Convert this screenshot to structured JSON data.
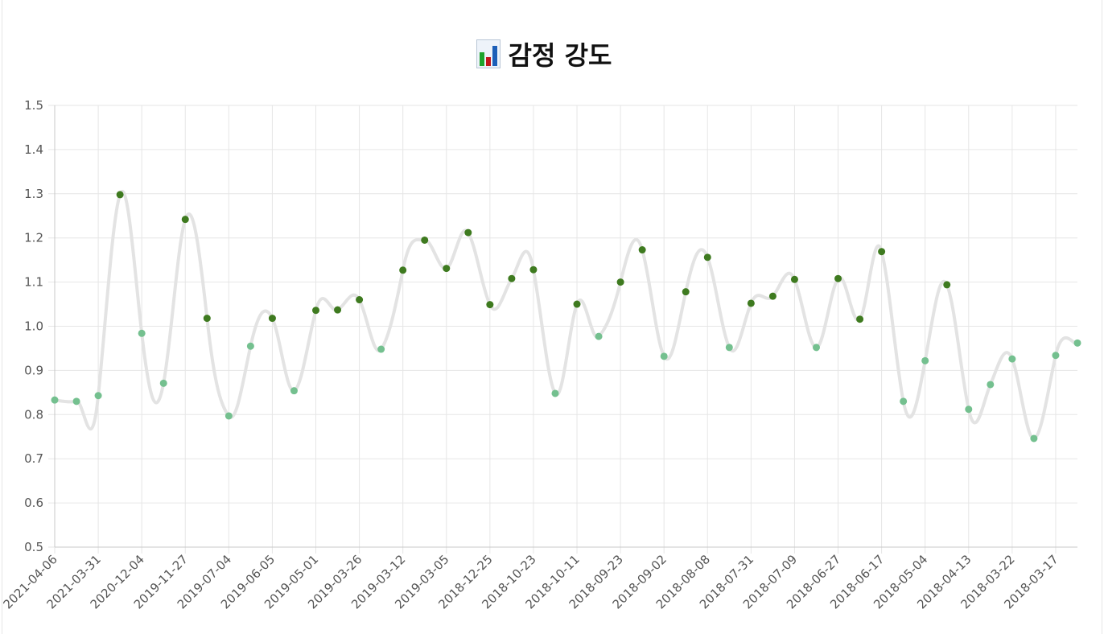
{
  "title": "감정 강도",
  "title_icon": "bar-chart-icon",
  "colors": {
    "line": "#e3e3e3",
    "point_high": "#3e7a1f",
    "point_low": "#74c08f",
    "grid": "#e6e6e6",
    "axis": "#c8c8c8",
    "tick_text": "#555555"
  },
  "chart_data": {
    "type": "line",
    "title": "감정 강도",
    "xlabel": "",
    "ylabel": "",
    "ylim": [
      0.5,
      1.5
    ],
    "yticks": [
      "0.5",
      "0.6",
      "0.7",
      "0.8",
      "0.9",
      "1.0",
      "1.1",
      "1.2",
      "1.3",
      "1.4",
      "1.5"
    ],
    "grid": true,
    "legend": "none",
    "point_color_rule": "values above 1.0 dark green, below 1.0 light green",
    "x": [
      "2021-04-06",
      "",
      "2021-03-31",
      "",
      "2020-12-04",
      "",
      "2019-11-27",
      "",
      "2019-07-04",
      "",
      "2019-06-05",
      "",
      "2019-05-01",
      "",
      "2019-03-26",
      "",
      "2019-03-12",
      "",
      "2019-03-05",
      "",
      "2018-12-25",
      "",
      "2018-10-23",
      "",
      "2018-10-11",
      "",
      "2018-09-23",
      "",
      "2018-09-02",
      "",
      "2018-08-08",
      "",
      "2018-07-31",
      "",
      "2018-07-09",
      "",
      "2018-06-27",
      "",
      "2018-06-17",
      "",
      "2018-05-04",
      "",
      "2018-04-13",
      "",
      "2018-03-22",
      "",
      "2018-03-17",
      ""
    ],
    "values": [
      0.833,
      0.83,
      0.843,
      1.298,
      0.984,
      0.871,
      1.242,
      1.018,
      0.797,
      0.955,
      1.018,
      0.854,
      1.036,
      1.037,
      1.06,
      0.948,
      1.127,
      1.195,
      1.131,
      1.212,
      1.049,
      1.108,
      1.128,
      0.848,
      1.05,
      0.977,
      1.1,
      1.173,
      0.932,
      1.078,
      1.156,
      0.952,
      1.052,
      1.068,
      1.106,
      0.952,
      1.108,
      1.016,
      1.169,
      0.83,
      0.922,
      1.094,
      0.812,
      0.868,
      0.926,
      0.746,
      0.934,
      0.962
    ]
  }
}
